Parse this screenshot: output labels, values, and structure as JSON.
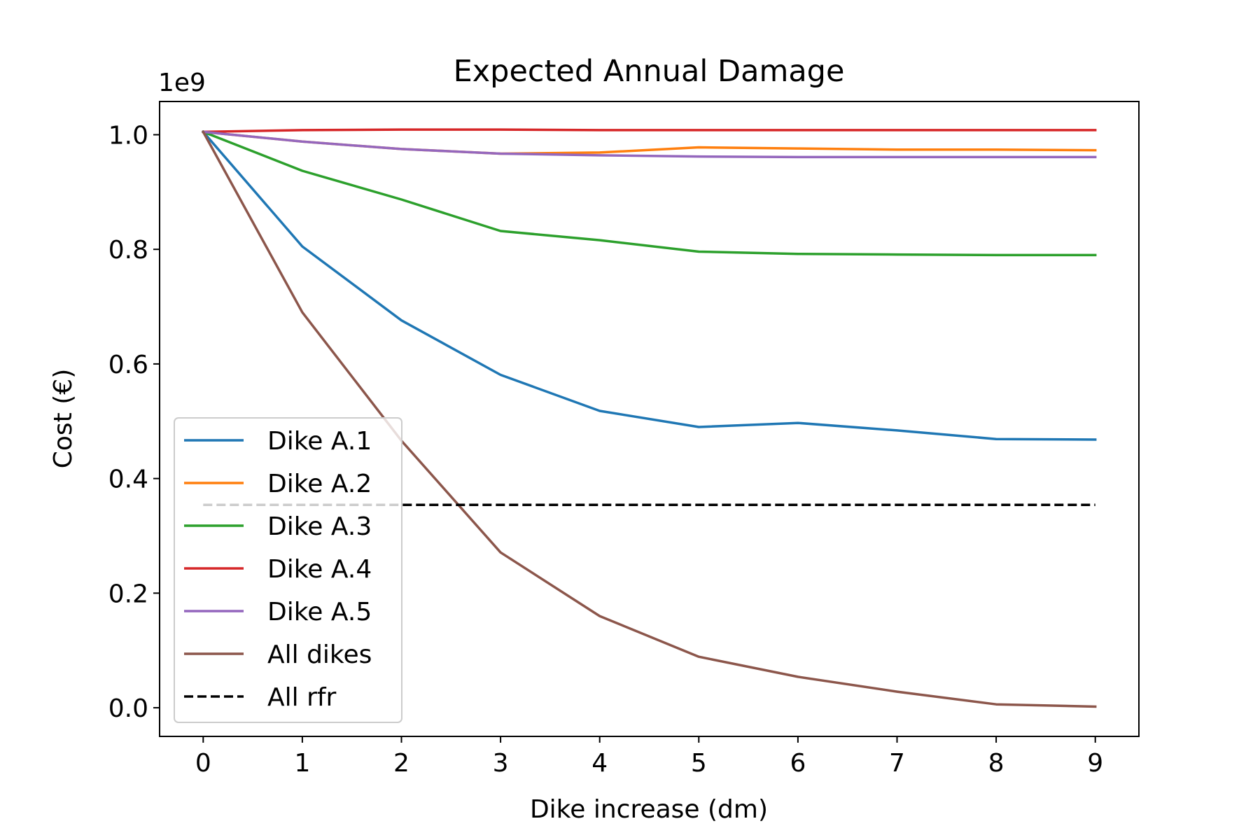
{
  "chart_data": {
    "type": "line",
    "title": "Expected Annual Damage",
    "xlabel": "Dike increase (dm)",
    "ylabel": "Cost (€)",
    "y_offset_label": "1e9",
    "y_multiplier": 1000000000,
    "x": [
      0,
      1,
      2,
      3,
      4,
      5,
      6,
      7,
      8,
      9
    ],
    "xlim": [
      -0.44,
      9.44
    ],
    "ylim": [
      -0.05,
      1.058
    ],
    "x_ticks": [
      "0",
      "1",
      "2",
      "3",
      "4",
      "5",
      "6",
      "7",
      "8",
      "9"
    ],
    "y_ticks": [
      "0.0",
      "0.2",
      "0.4",
      "0.6",
      "0.8",
      "1.0"
    ],
    "grid": false,
    "legend_position": "lower-left",
    "series": [
      {
        "name": "Dike A.1",
        "color": "#1f77b4",
        "dash": "solid",
        "values": [
          1.005,
          0.805,
          0.676,
          0.581,
          0.518,
          0.49,
          0.497,
          0.484,
          0.469,
          0.468
        ]
      },
      {
        "name": "Dike A.2",
        "color": "#ff7f0e",
        "dash": "solid",
        "values": [
          1.005,
          0.988,
          0.975,
          0.967,
          0.969,
          0.978,
          0.976,
          0.974,
          0.974,
          0.973
        ]
      },
      {
        "name": "Dike A.3",
        "color": "#2ca02c",
        "dash": "solid",
        "values": [
          1.005,
          0.937,
          0.887,
          0.832,
          0.816,
          0.796,
          0.792,
          0.791,
          0.79,
          0.79
        ]
      },
      {
        "name": "Dike A.4",
        "color": "#d62728",
        "dash": "solid",
        "values": [
          1.005,
          1.008,
          1.009,
          1.009,
          1.008,
          1.008,
          1.008,
          1.008,
          1.008,
          1.008
        ]
      },
      {
        "name": "Dike A.5",
        "color": "#9467bd",
        "dash": "solid",
        "values": [
          1.005,
          0.988,
          0.975,
          0.967,
          0.964,
          0.962,
          0.961,
          0.961,
          0.961,
          0.961
        ]
      },
      {
        "name": "All dikes",
        "color": "#8c564b",
        "dash": "solid",
        "values": [
          1.005,
          0.69,
          0.466,
          0.271,
          0.16,
          0.089,
          0.054,
          0.028,
          0.006,
          0.002
        ]
      },
      {
        "name": "All rfr",
        "color": "#000000",
        "dash": "dashed",
        "values": [
          0.354,
          0.354,
          0.354,
          0.354,
          0.354,
          0.354,
          0.354,
          0.354,
          0.354,
          0.354
        ]
      }
    ]
  }
}
